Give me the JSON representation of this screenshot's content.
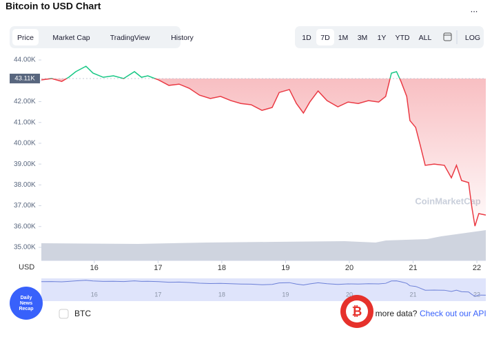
{
  "header": {
    "title": "Bitcoin to USD Chart",
    "menu": "...",
    "tabs": [
      "Price",
      "Market Cap",
      "TradingView",
      "History"
    ],
    "ranges": [
      "1D",
      "7D",
      "1M",
      "3M",
      "1Y",
      "YTD",
      "ALL"
    ],
    "log": "LOG"
  },
  "chart_data": {
    "type": "line",
    "y_label": "USD",
    "watermark": "CoinMarketCap",
    "x": [
      15.17,
      15.33,
      15.49,
      15.6,
      15.71,
      15.87,
      15.98,
      16.14,
      16.3,
      16.46,
      16.63,
      16.74,
      16.84,
      17.01,
      17.17,
      17.33,
      17.49,
      17.65,
      17.82,
      17.98,
      18.14,
      18.3,
      18.46,
      18.63,
      18.79,
      18.9,
      19.06,
      19.17,
      19.28,
      19.38,
      19.51,
      19.65,
      19.82,
      19.98,
      20.14,
      20.3,
      20.46,
      20.57,
      20.66,
      20.74,
      20.81,
      20.9,
      20.95,
      21.04,
      21.11,
      21.19,
      21.33,
      21.49,
      21.6,
      21.68,
      21.76,
      21.87,
      21.92,
      21.97,
      22.03,
      22.14
    ],
    "series": [
      {
        "name": "BTC",
        "up_color": "#16c784",
        "down_color": "#ea3943",
        "values": [
          43040,
          43110,
          42970,
          43170,
          43440,
          43700,
          43370,
          43170,
          43240,
          43110,
          43440,
          43170,
          43240,
          43040,
          42780,
          42840,
          42640,
          42310,
          42150,
          42250,
          42050,
          41910,
          41850,
          41580,
          41720,
          42440,
          42580,
          41910,
          41450,
          41980,
          42510,
          42050,
          41750,
          41980,
          41910,
          42050,
          41980,
          42250,
          43370,
          43440,
          42970,
          42250,
          41090,
          40760,
          39930,
          38940,
          39000,
          38940,
          38340,
          38940,
          38210,
          38110,
          36950,
          36020,
          36620,
          36550
        ]
      }
    ],
    "reference": {
      "value": 43110,
      "label": "43.11K"
    },
    "xlim": [
      15.17,
      22.14
    ],
    "xticks": [
      16,
      17,
      18,
      19,
      20,
      21,
      22
    ],
    "ylim": [
      34370,
      44300
    ],
    "yticks": [
      {
        "value": 35000,
        "label": "35.00K"
      },
      {
        "value": 36000,
        "label": "36.00K"
      },
      {
        "value": 37000,
        "label": "37.00K"
      },
      {
        "value": 38000,
        "label": "38.00K"
      },
      {
        "value": 39000,
        "label": "39.00K"
      },
      {
        "value": 40000,
        "label": "40.00K"
      },
      {
        "value": 41000,
        "label": "41.00K"
      },
      {
        "value": 42000,
        "label": "42.00K"
      },
      {
        "value": 43000,
        "label": "43.00K"
      },
      {
        "value": 44000,
        "label": "44.00K"
      }
    ]
  },
  "footer": {
    "checkbox": "BTC",
    "more_data": "t more data?",
    "api_link": "Check out our API",
    "badge": [
      "Daily",
      "News",
      "Recap"
    ]
  }
}
